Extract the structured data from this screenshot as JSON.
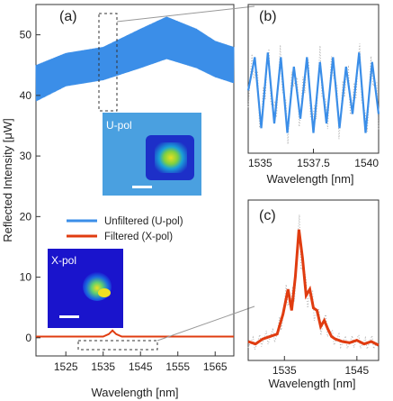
{
  "chart_data": [
    {
      "panel": "(a)",
      "type": "line",
      "xlabel": "Wavelength [nm]",
      "ylabel": "Reflected Intensity [μW]",
      "xlim": [
        1517,
        1570
      ],
      "ylim": [
        -3,
        55
      ],
      "xticks": [
        1525,
        1535,
        1545,
        1555,
        1565
      ],
      "yticks": [
        0,
        10,
        20,
        30,
        40,
        50
      ],
      "series": [
        {
          "name": "Unfiltered (U-pol)",
          "color": "#3b8ee8",
          "envelope_x": [
            1517,
            1525,
            1535,
            1545,
            1552,
            1560,
            1565,
            1570
          ],
          "envelope_lower": [
            39,
            41.5,
            42.5,
            44.5,
            46,
            44.5,
            43,
            42
          ],
          "envelope_upper": [
            45,
            47,
            48,
            51,
            53,
            51,
            49,
            48
          ]
        },
        {
          "name": "Filtered (X-pol)",
          "color": "#e03c10",
          "x": [
            1517,
            1535,
            1536.5,
            1537.5,
            1538.5,
            1540,
            1570
          ],
          "y": [
            0.2,
            0.2,
            0.6,
            1.2,
            0.6,
            0.2,
            0.2
          ]
        }
      ],
      "insets": [
        {
          "label": "U-pol"
        },
        {
          "label": "X-pol"
        }
      ]
    },
    {
      "panel": "(b)",
      "type": "line",
      "xlabel": "Wavelength [nm]",
      "xlim": [
        1535,
        1540
      ],
      "xticks": [
        "1535",
        "1537.5",
        "1540"
      ],
      "series": [
        {
          "color": "#3b8ee8",
          "x": [
            1535.0,
            1535.25,
            1535.5,
            1535.75,
            1536.0,
            1536.25,
            1536.5,
            1536.75,
            1537.0,
            1537.25,
            1537.5,
            1537.75,
            1538.0,
            1538.25,
            1538.5,
            1538.75,
            1539.0,
            1539.25,
            1539.5,
            1539.75,
            1540.0
          ],
          "y": [
            0.55,
            0.9,
            0.15,
            0.95,
            0.2,
            0.9,
            0.1,
            0.8,
            0.25,
            0.9,
            0.1,
            0.85,
            0.2,
            0.9,
            0.15,
            0.8,
            0.3,
            0.95,
            0.1,
            0.85,
            0.3
          ]
        }
      ]
    },
    {
      "panel": "(c)",
      "type": "line",
      "xlabel": "Wavelength [nm]",
      "xlim": [
        1530,
        1548
      ],
      "xticks": [
        "1535",
        "1545"
      ],
      "series": [
        {
          "color": "#e03c10",
          "x": [
            1530.0,
            1531.0,
            1532.0,
            1533.0,
            1534.0,
            1534.8,
            1535.5,
            1536.0,
            1536.5,
            1537.0,
            1537.5,
            1538.0,
            1538.5,
            1539.0,
            1539.5,
            1540.0,
            1540.5,
            1541.0,
            1541.5,
            1542.0,
            1543.0,
            1544.0,
            1545.0,
            1546.0,
            1547.0,
            1548.0
          ],
          "y": [
            0.08,
            0.06,
            0.1,
            0.12,
            0.14,
            0.3,
            0.5,
            0.33,
            0.6,
            0.98,
            0.75,
            0.45,
            0.5,
            0.35,
            0.33,
            0.2,
            0.25,
            0.18,
            0.12,
            0.1,
            0.08,
            0.07,
            0.09,
            0.06,
            0.08,
            0.05
          ]
        }
      ]
    }
  ],
  "panels": {
    "a": {
      "label": "(a)"
    },
    "b": {
      "label": "(b)"
    },
    "c": {
      "label": "(c)"
    }
  },
  "legend": {
    "u_label": "Unfiltered (U-pol)",
    "x_label": "Filtered (X-pol)"
  },
  "insets": {
    "u_label": "U-pol",
    "x_label": "X-pol"
  },
  "colors": {
    "blue": "#3b8ee8",
    "red": "#e03c10",
    "gray": "#b0b0b0"
  }
}
